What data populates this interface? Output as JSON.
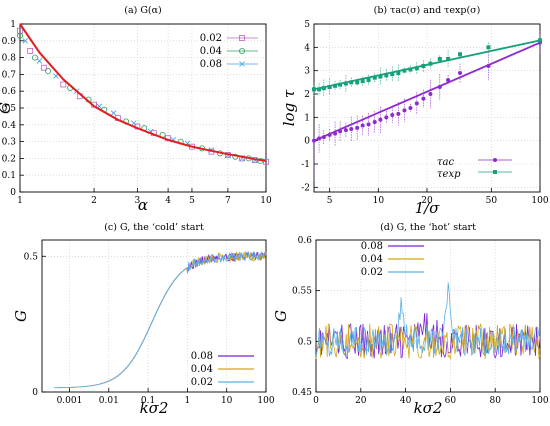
{
  "chart_data": [
    {
      "id": "a",
      "type": "scatter",
      "title": "(a) G(α)",
      "xlabel": "α",
      "ylabel": "G",
      "xscale": "log",
      "xlim": [
        1,
        10
      ],
      "ylim": [
        0,
        1
      ],
      "xticks": [
        1,
        2,
        3,
        4,
        5,
        7,
        10
      ],
      "yticks": [
        0,
        0.1,
        0.2,
        0.3,
        0.4,
        0.5,
        0.6,
        0.7,
        0.8,
        0.9,
        1
      ],
      "ytick_labels": [
        "0",
        "0.1",
        "0.2",
        "0.3",
        "0.4",
        "0.5",
        "0.6",
        "0.7",
        "0.8",
        "0.9",
        "1"
      ],
      "grid": true,
      "legend_position": "top-right",
      "series": [
        {
          "name": "0.02",
          "marker": "square",
          "color": "#c060c0",
          "x": [
            1.0,
            1.1,
            1.25,
            1.5,
            1.75,
            2.0,
            2.5,
            3.0,
            3.5,
            4.0,
            5.0,
            6.0,
            7.0,
            8.0,
            9.0,
            10.0
          ],
          "y": [
            0.96,
            0.84,
            0.74,
            0.64,
            0.57,
            0.52,
            0.44,
            0.39,
            0.35,
            0.32,
            0.27,
            0.24,
            0.22,
            0.2,
            0.19,
            0.18
          ]
        },
        {
          "name": "0.04",
          "marker": "circle",
          "color": "#30a060",
          "x": [
            1.0,
            1.15,
            1.3,
            1.6,
            1.9,
            2.2,
            2.7,
            3.2,
            3.8,
            4.5,
            5.5,
            6.5,
            7.5,
            8.5,
            9.5
          ],
          "y": [
            0.93,
            0.8,
            0.72,
            0.62,
            0.55,
            0.49,
            0.42,
            0.38,
            0.34,
            0.3,
            0.26,
            0.23,
            0.21,
            0.2,
            0.185
          ]
        },
        {
          "name": "0.08",
          "marker": "cross",
          "color": "#40a0e0",
          "x": [
            1.05,
            1.2,
            1.4,
            1.7,
            2.1,
            2.4,
            2.9,
            3.4,
            4.2,
            4.8,
            6.0,
            7.0,
            8.0,
            9.0
          ],
          "y": [
            0.9,
            0.78,
            0.69,
            0.6,
            0.51,
            0.47,
            0.41,
            0.36,
            0.31,
            0.29,
            0.25,
            0.22,
            0.2,
            0.19
          ]
        }
      ],
      "curve": {
        "color": "#e02020",
        "x": [
          1,
          1.2,
          1.5,
          2,
          2.5,
          3,
          4,
          5,
          6,
          7,
          8,
          9,
          10
        ],
        "y": [
          1.0,
          0.83,
          0.67,
          0.51,
          0.43,
          0.38,
          0.31,
          0.27,
          0.245,
          0.225,
          0.21,
          0.195,
          0.185
        ]
      }
    },
    {
      "id": "b",
      "type": "scatter",
      "title": "(b) τac(σ) and τexp(σ)",
      "xlabel": "1/σ",
      "ylabel": "log τ",
      "xscale": "log",
      "xlim": [
        4,
        100
      ],
      "ylim": [
        -2.2,
        5
      ],
      "xticks": [
        5,
        10,
        20,
        50,
        100
      ],
      "yticks": [
        -2,
        -1,
        0,
        1,
        2,
        3,
        4,
        5
      ],
      "ytick_labels": [
        "-2",
        "-1",
        "0",
        "1",
        "2",
        "3",
        "4",
        "5"
      ],
      "grid": true,
      "legend_position": "bottom-right",
      "series": [
        {
          "name": "τac",
          "color": "#8e2ad0",
          "x": [
            4.0,
            4.3,
            4.6,
            5.0,
            5.4,
            5.8,
            6.3,
            6.8,
            7.4,
            8.0,
            8.7,
            9.5,
            10.3,
            11.2,
            12.2,
            13.3,
            14.5,
            15.8,
            17.3,
            19,
            21,
            24,
            27,
            32,
            48,
            100
          ],
          "y": [
            0.0,
            0.1,
            0.15,
            0.25,
            0.3,
            0.4,
            0.45,
            0.5,
            0.55,
            0.65,
            0.7,
            0.8,
            0.9,
            1.0,
            1.1,
            1.15,
            1.3,
            1.4,
            1.6,
            1.8,
            2.0,
            2.3,
            2.6,
            2.9,
            3.2,
            4.2
          ]
        },
        {
          "name": "τexp",
          "color": "#17a07c",
          "x": [
            4.0,
            4.3,
            4.6,
            5.0,
            5.4,
            5.8,
            6.3,
            6.8,
            7.4,
            8.0,
            8.7,
            9.5,
            10.3,
            11.2,
            12.2,
            13.3,
            14.5,
            15.8,
            17.3,
            19,
            21,
            24,
            27,
            32,
            48,
            100
          ],
          "y": [
            2.2,
            2.2,
            2.25,
            2.3,
            2.35,
            2.4,
            2.45,
            2.5,
            2.5,
            2.55,
            2.6,
            2.7,
            2.75,
            2.8,
            2.85,
            2.9,
            3.0,
            3.05,
            3.1,
            3.2,
            3.3,
            3.5,
            3.5,
            3.7,
            4.0,
            4.3
          ]
        }
      ]
    },
    {
      "id": "c",
      "type": "line",
      "title": "(c) G, the ‘cold’ start",
      "xlabel": "kσ2",
      "ylabel": "G",
      "xscale": "log",
      "xlim": [
        0.0002,
        100
      ],
      "ylim": [
        0,
        0.56
      ],
      "xticks": [
        0.001,
        0.01,
        0.1,
        1,
        10,
        100
      ],
      "xtick_labels": [
        "0.001",
        "0.01",
        "0.1",
        "1",
        "10",
        "100"
      ],
      "yticks": [
        0,
        0.5
      ],
      "ytick_labels": [
        "0",
        "0.5"
      ],
      "grid": true,
      "legend_position": "bottom-right",
      "series": [
        {
          "name": "0.08",
          "color": "#7a22d4"
        },
        {
          "name": "0.04",
          "color": "#d4a814"
        },
        {
          "name": "0.02",
          "color": "#5ab0e8"
        }
      ]
    },
    {
      "id": "d",
      "type": "line",
      "title": "(d) G, the ‘hot’ start",
      "xlabel": "kσ2",
      "ylabel": "G",
      "xlim": [
        0,
        100
      ],
      "ylim": [
        0.45,
        0.6
      ],
      "xticks": [
        0,
        20,
        40,
        60,
        80,
        100
      ],
      "yticks": [
        0.45,
        0.5,
        0.55,
        0.6
      ],
      "ytick_labels": [
        "0.45",
        "0.5",
        "0.55",
        "0.6"
      ],
      "grid": true,
      "legend_position": "top-left",
      "series": [
        {
          "name": "0.08",
          "color": "#7a22d4"
        },
        {
          "name": "0.04",
          "color": "#d4a814"
        },
        {
          "name": "0.02",
          "color": "#5ab0e8"
        }
      ]
    }
  ]
}
